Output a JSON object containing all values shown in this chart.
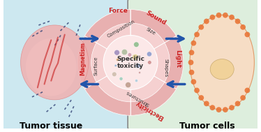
{
  "bg_left": "#cde8f0",
  "bg_right": "#ddeedd",
  "border_color": "#888888",
  "outer_ring_color": "#e8a0a0",
  "inner_ring_color": "#f0c0c0",
  "center_color": "#f8e0e0",
  "center_text": "Specific\ntoxicity",
  "outer_labels": [
    "Force",
    "Sound",
    "Light",
    "Electricity",
    "Magnetism"
  ],
  "inner_labels": [
    "Composition",
    "Size",
    "Shapes",
    "Structures",
    "Surface"
  ],
  "title_left": "Tumor tissue",
  "title_right": "Tumor cells",
  "arrow_color": "#2255aa",
  "label_color_outer": "#cc2222",
  "label_color_inner": "#333333",
  "fig_width": 3.74,
  "fig_height": 1.89
}
